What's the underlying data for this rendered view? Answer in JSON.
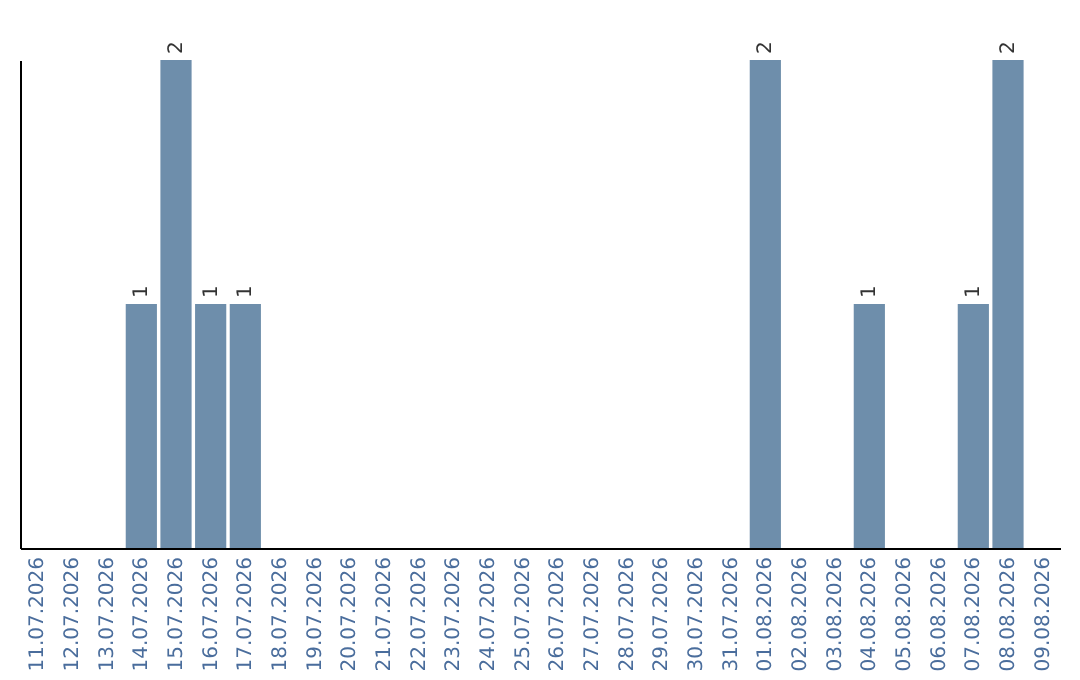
{
  "chart_data": {
    "type": "bar",
    "categories": [
      "11.07.2026",
      "12.07.2026",
      "13.07.2026",
      "14.07.2026",
      "15.07.2026",
      "16.07.2026",
      "17.07.2026",
      "18.07.2026",
      "19.07.2026",
      "20.07.2026",
      "21.07.2026",
      "22.07.2026",
      "23.07.2026",
      "24.07.2026",
      "25.07.2026",
      "26.07.2026",
      "27.07.2026",
      "28.07.2026",
      "29.07.2026",
      "30.07.2026",
      "31.07.2026",
      "01.08.2026",
      "02.08.2026",
      "03.08.2026",
      "04.08.2026",
      "05.08.2026",
      "06.08.2026",
      "07.08.2026",
      "08.08.2026",
      "09.08.2026"
    ],
    "values": [
      0,
      0,
      0,
      1,
      2,
      1,
      1,
      0,
      0,
      0,
      0,
      0,
      0,
      0,
      0,
      0,
      0,
      0,
      0,
      0,
      0,
      2,
      0,
      0,
      1,
      0,
      0,
      1,
      2,
      0
    ],
    "value_labels": [
      null,
      null,
      null,
      "1",
      "2",
      "1",
      "1",
      null,
      null,
      null,
      null,
      null,
      null,
      null,
      null,
      null,
      null,
      null,
      null,
      null,
      null,
      "2",
      null,
      null,
      "1",
      null,
      null,
      "1",
      "2",
      null
    ],
    "color": "#6e8eab"
  }
}
